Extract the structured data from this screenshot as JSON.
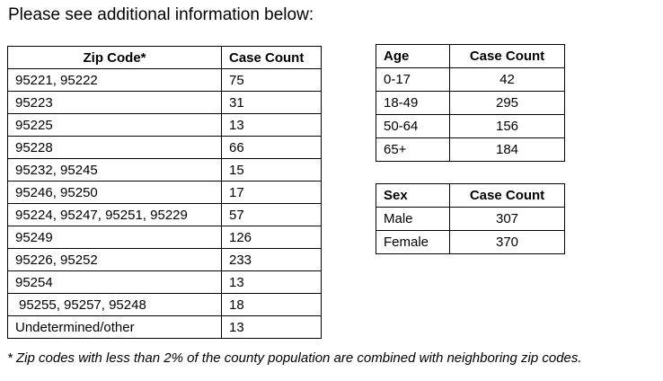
{
  "intro_text": "Please see additional information below:",
  "zip_table": {
    "headers": [
      "Zip Code*",
      "Case Count"
    ],
    "rows": [
      [
        "95221, 95222",
        "75"
      ],
      [
        "95223",
        "31"
      ],
      [
        "95225",
        "13"
      ],
      [
        "95228",
        "66"
      ],
      [
        "95232, 95245",
        "15"
      ],
      [
        "95246, 95250",
        "17"
      ],
      [
        "95224, 95247, 95251, 95229",
        "57"
      ],
      [
        "95249",
        "126"
      ],
      [
        "95226, 95252",
        "233"
      ],
      [
        "95254",
        "13"
      ],
      [
        " 95255, 95257, 95248",
        "18"
      ],
      [
        "Undetermined/other",
        "13"
      ]
    ]
  },
  "age_table": {
    "headers": [
      "Age",
      "Case Count"
    ],
    "rows": [
      [
        "0-17",
        "42"
      ],
      [
        "18-49",
        "295"
      ],
      [
        "50-64",
        "156"
      ],
      [
        "65+",
        "184"
      ]
    ]
  },
  "sex_table": {
    "headers": [
      "Sex",
      "Case Count"
    ],
    "rows": [
      [
        "Male",
        "307"
      ],
      [
        "Female",
        "370"
      ]
    ]
  },
  "footnote": "* Zip codes with less than 2% of the county population are combined with neighboring zip codes."
}
